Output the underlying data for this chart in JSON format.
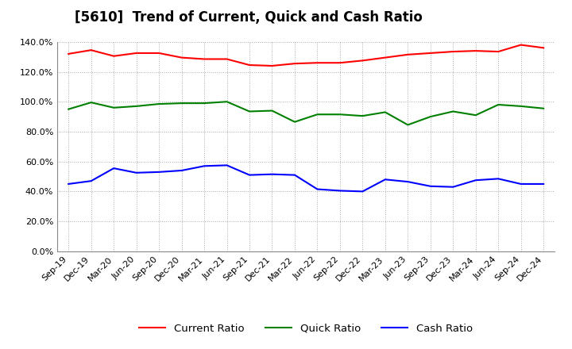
{
  "title": "[5610]  Trend of Current, Quick and Cash Ratio",
  "x_labels": [
    "Sep-19",
    "Dec-19",
    "Mar-20",
    "Jun-20",
    "Sep-20",
    "Dec-20",
    "Mar-21",
    "Jun-21",
    "Sep-21",
    "Dec-21",
    "Mar-22",
    "Jun-22",
    "Sep-22",
    "Dec-22",
    "Mar-23",
    "Jun-23",
    "Sep-23",
    "Dec-23",
    "Mar-24",
    "Jun-24",
    "Sep-24",
    "Dec-24"
  ],
  "current_ratio": [
    132.0,
    134.5,
    130.5,
    132.5,
    132.5,
    129.5,
    128.5,
    128.5,
    124.5,
    124.0,
    125.5,
    126.0,
    126.0,
    127.5,
    129.5,
    131.5,
    132.5,
    133.5,
    134.0,
    133.5,
    138.0,
    136.0
  ],
  "quick_ratio": [
    95.0,
    99.5,
    96.0,
    97.0,
    98.5,
    99.0,
    99.0,
    100.0,
    93.5,
    94.0,
    86.5,
    91.5,
    91.5,
    90.5,
    93.0,
    84.5,
    90.0,
    93.5,
    91.0,
    98.0,
    97.0,
    95.5
  ],
  "cash_ratio": [
    45.0,
    47.0,
    55.5,
    52.5,
    53.0,
    54.0,
    57.0,
    57.5,
    51.0,
    51.5,
    51.0,
    41.5,
    40.5,
    40.0,
    48.0,
    46.5,
    43.5,
    43.0,
    47.5,
    48.5,
    45.0,
    45.0
  ],
  "current_color": "#FF0000",
  "quick_color": "#008000",
  "cash_color": "#0000FF",
  "ylim": [
    0,
    140
  ],
  "yticks": [
    0,
    20,
    40,
    60,
    80,
    100,
    120,
    140
  ],
  "background_color": "#FFFFFF",
  "plot_bg_color": "#FFFFFF",
  "grid_color": "#AAAAAA",
  "title_fontsize": 12,
  "legend_fontsize": 9.5,
  "tick_fontsize": 8
}
